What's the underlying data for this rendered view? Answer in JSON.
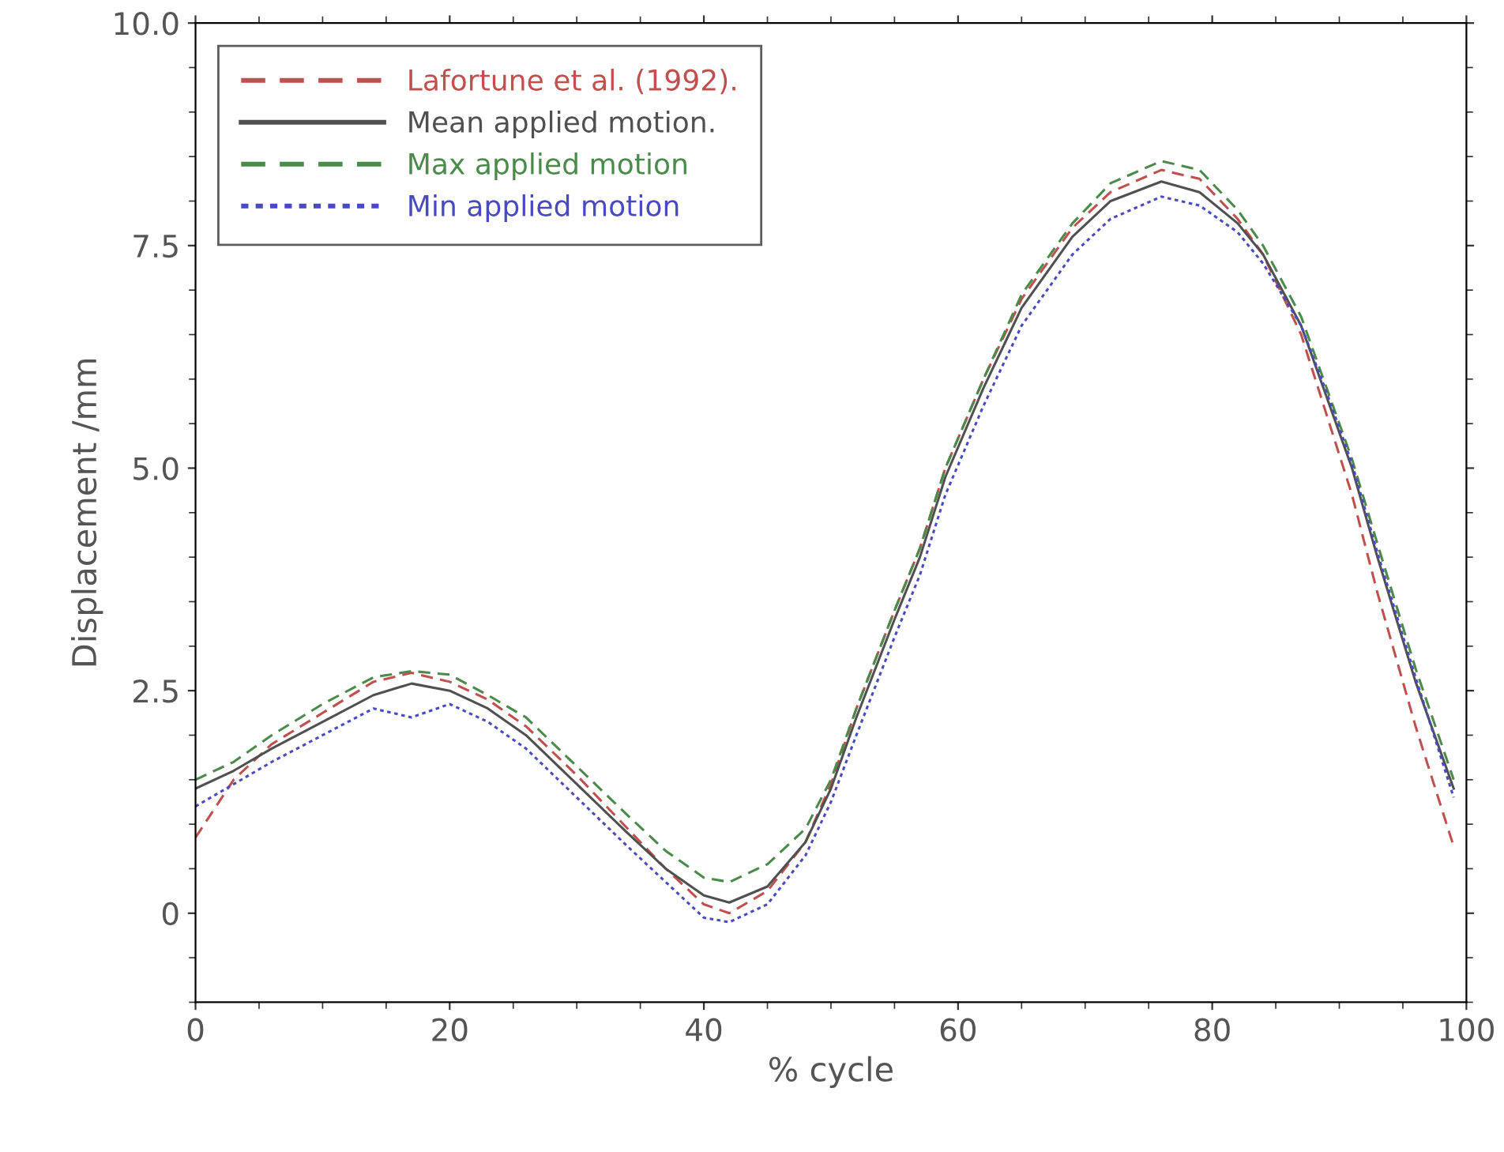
{
  "chart_data": {
    "type": "line",
    "xlabel": "% cycle",
    "ylabel": "Displacement /mm",
    "x": [
      0,
      3,
      6,
      10,
      14,
      17,
      20,
      23,
      26,
      30,
      34,
      37,
      40,
      42,
      45,
      48,
      50,
      52,
      55,
      57,
      59,
      62,
      65,
      69,
      72,
      76,
      79,
      82,
      84,
      87,
      89,
      91,
      93,
      96,
      99
    ],
    "series": [
      {
        "name": "Lafortune et al. (1992).",
        "color": "#c0504d",
        "line_style": "dashed",
        "values": [
          0.85,
          1.5,
          1.9,
          2.25,
          2.6,
          2.7,
          2.6,
          2.4,
          2.1,
          1.55,
          0.95,
          0.5,
          0.1,
          0.0,
          0.25,
          0.8,
          1.45,
          2.3,
          3.4,
          4.1,
          5.0,
          6.0,
          6.9,
          7.7,
          8.1,
          8.35,
          8.25,
          7.8,
          7.4,
          6.5,
          5.6,
          4.7,
          3.6,
          2.1,
          0.75
        ]
      },
      {
        "name": "Mean applied motion.",
        "color": "#505050",
        "line_style": "solid",
        "values": [
          1.4,
          1.6,
          1.85,
          2.15,
          2.45,
          2.58,
          2.5,
          2.3,
          2.0,
          1.45,
          0.9,
          0.5,
          0.2,
          0.12,
          0.3,
          0.8,
          1.4,
          2.2,
          3.3,
          4.0,
          4.9,
          5.9,
          6.8,
          7.6,
          8.0,
          8.22,
          8.1,
          7.75,
          7.4,
          6.6,
          5.8,
          5.0,
          4.0,
          2.6,
          1.4
        ]
      },
      {
        "name": "Max applied motion",
        "color": "#4a8a4a",
        "line_style": "dashed",
        "values": [
          1.5,
          1.7,
          2.0,
          2.35,
          2.65,
          2.72,
          2.68,
          2.45,
          2.2,
          1.65,
          1.1,
          0.7,
          0.4,
          0.35,
          0.55,
          0.95,
          1.5,
          2.3,
          3.4,
          4.1,
          5.0,
          6.0,
          6.95,
          7.75,
          8.2,
          8.45,
          8.35,
          7.9,
          7.5,
          6.7,
          5.9,
          5.1,
          4.15,
          2.75,
          1.5
        ]
      },
      {
        "name": "Min applied motion",
        "color": "#4a4ac0",
        "line_style": "dotted",
        "values": [
          1.2,
          1.45,
          1.7,
          2.0,
          2.3,
          2.2,
          2.35,
          2.15,
          1.85,
          1.3,
          0.75,
          0.35,
          -0.05,
          -0.1,
          0.1,
          0.65,
          1.25,
          2.0,
          3.1,
          3.8,
          4.7,
          5.7,
          6.6,
          7.4,
          7.8,
          8.05,
          7.95,
          7.65,
          7.3,
          6.6,
          5.85,
          5.05,
          4.05,
          2.65,
          1.3
        ]
      }
    ],
    "xlim": [
      0,
      100
    ],
    "xticks": [
      0,
      20,
      40,
      60,
      80,
      100
    ],
    "ylim": [
      -1,
      10
    ],
    "yticks": [
      0,
      {
        "value": 2.5,
        "label": "2.5"
      },
      {
        "value": 5,
        "label": "5.0"
      },
      {
        "value": 7.5,
        "label": "7.5"
      },
      {
        "value": 10,
        "label": "10.0"
      }
    ],
    "grid": false,
    "legend": "top left",
    "marker": "none"
  }
}
